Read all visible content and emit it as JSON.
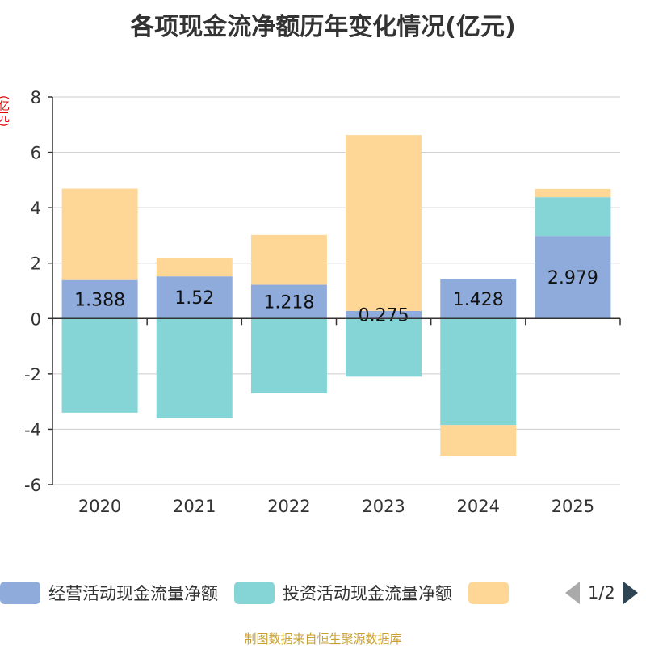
{
  "chart_data": {
    "type": "bar",
    "stacked": true,
    "title": "各项现金流净额历年变化情况(亿元)",
    "ylabel": "(亿元)",
    "xlabel": "",
    "categories": [
      "2020",
      "2021",
      "2022",
      "2023",
      "2024",
      "2025"
    ],
    "ylim": [
      -6,
      8
    ],
    "yticks": [
      -6,
      -4,
      -2,
      0,
      2,
      4,
      6,
      8
    ],
    "grid": true,
    "series": [
      {
        "name": "经营活动现金流量净额",
        "color": "#8eabdb",
        "values": [
          1.388,
          1.52,
          1.218,
          0.275,
          1.428,
          2.979
        ],
        "labels": [
          "1.388",
          "1.52",
          "1.218",
          "0.275",
          "1.428",
          "2.979"
        ]
      },
      {
        "name": "投资活动现金流量净额",
        "color": "#85d4d6",
        "values": [
          -3.4,
          -3.6,
          -2.7,
          -2.1,
          -3.85,
          1.4
        ]
      },
      {
        "name": "",
        "color": "#fed797",
        "values": [
          3.3,
          0.65,
          1.8,
          6.35,
          -1.1,
          0.3
        ]
      }
    ],
    "legend_position": "bottom"
  },
  "legend": {
    "page": "1/2"
  },
  "source": "制图数据来自恒生聚源数据库"
}
